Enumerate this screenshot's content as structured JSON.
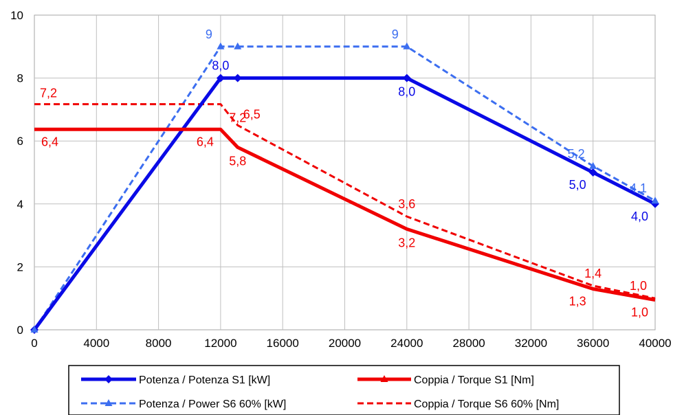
{
  "chart_data": {
    "type": "line",
    "title": "",
    "xlabel": "",
    "ylabel": "",
    "xlim": [
      0,
      40000
    ],
    "ylim": [
      0,
      10
    ],
    "x_ticks": [
      "0",
      "4000",
      "8000",
      "12000",
      "16000",
      "20000",
      "24000",
      "28000",
      "32000",
      "36000",
      "40000"
    ],
    "y_ticks": [
      "0",
      "2",
      "4",
      "6",
      "8",
      "10"
    ],
    "grid": true,
    "legend_position": "bottom",
    "series": [
      {
        "name": "Potenza / Potenza S1 [kW]",
        "color": "#0a0ae6",
        "dash": "solid",
        "marker": "diamond",
        "x": [
          0,
          12000,
          13100,
          24000,
          36000,
          40000
        ],
        "y": [
          0,
          8.0,
          8.0,
          8.0,
          5.0,
          4.0
        ],
        "labels": [
          {
            "x": 12000,
            "y": 8.0,
            "text": "8,0",
            "pos": "above"
          },
          {
            "x": 24000,
            "y": 8.0,
            "text": "8,0",
            "pos": "below"
          },
          {
            "x": 36000,
            "y": 5.0,
            "text": "5,0",
            "pos": "below-left"
          },
          {
            "x": 40000,
            "y": 4.0,
            "text": "4,0",
            "pos": "below-left"
          }
        ]
      },
      {
        "name": "Coppia / Torque S1 [Nm]",
        "color": "#f00000",
        "dash": "solid",
        "marker": "triangle",
        "x": [
          0,
          12000,
          13100,
          24000,
          36000,
          40000
        ],
        "y": [
          6.37,
          6.37,
          5.8,
          3.2,
          1.3,
          0.95
        ],
        "labels": [
          {
            "x": 0,
            "y": 6.37,
            "text": "6,4",
            "pos": "below-right"
          },
          {
            "x": 12000,
            "y": 6.37,
            "text": "6,4",
            "pos": "below-left"
          },
          {
            "x": 13100,
            "y": 5.8,
            "text": "5,8",
            "pos": "below"
          },
          {
            "x": 24000,
            "y": 3.2,
            "text": "3,2",
            "pos": "below"
          },
          {
            "x": 36000,
            "y": 1.3,
            "text": "1,3",
            "pos": "below-left"
          },
          {
            "x": 40000,
            "y": 0.95,
            "text": "1,0",
            "pos": "below-left"
          }
        ]
      },
      {
        "name": "Potenza / Power S6 60% [kW]",
        "color": "#3c6ef0",
        "dash": "dashed",
        "marker": "triangle",
        "x": [
          0,
          12000,
          13100,
          24000,
          36000,
          40000
        ],
        "y": [
          0,
          9.0,
          9.0,
          9.0,
          5.2,
          4.1
        ],
        "labels": [
          {
            "x": 12000,
            "y": 9.0,
            "text": "9",
            "pos": "above-left"
          },
          {
            "x": 24000,
            "y": 9.0,
            "text": "9",
            "pos": "above-left"
          },
          {
            "x": 36000,
            "y": 5.2,
            "text": "5,2",
            "pos": "above-left"
          },
          {
            "x": 40000,
            "y": 4.1,
            "text": "4,1",
            "pos": "above-left"
          }
        ]
      },
      {
        "name": "Coppia / Torque S6 60% [Nm]",
        "color": "#f00000",
        "dash": "dashed",
        "marker": "none",
        "x": [
          0,
          12000,
          13100,
          24000,
          36000,
          40000
        ],
        "y": [
          7.17,
          7.17,
          6.5,
          3.6,
          1.4,
          1.0
        ],
        "labels": [
          {
            "x": 0,
            "y": 7.17,
            "text": "7,2",
            "pos": "above-right"
          },
          {
            "x": 13100,
            "y": 7.17,
            "text": "7,2",
            "pos": "below"
          },
          {
            "x": 13100,
            "y": 6.5,
            "text": "6,5",
            "pos": "above-right"
          },
          {
            "x": 24000,
            "y": 3.6,
            "text": "3,6",
            "pos": "above"
          },
          {
            "x": 36000,
            "y": 1.4,
            "text": "1,4",
            "pos": "above"
          },
          {
            "x": 40000,
            "y": 1.0,
            "text": "1,0",
            "pos": "above-left"
          }
        ]
      }
    ]
  }
}
